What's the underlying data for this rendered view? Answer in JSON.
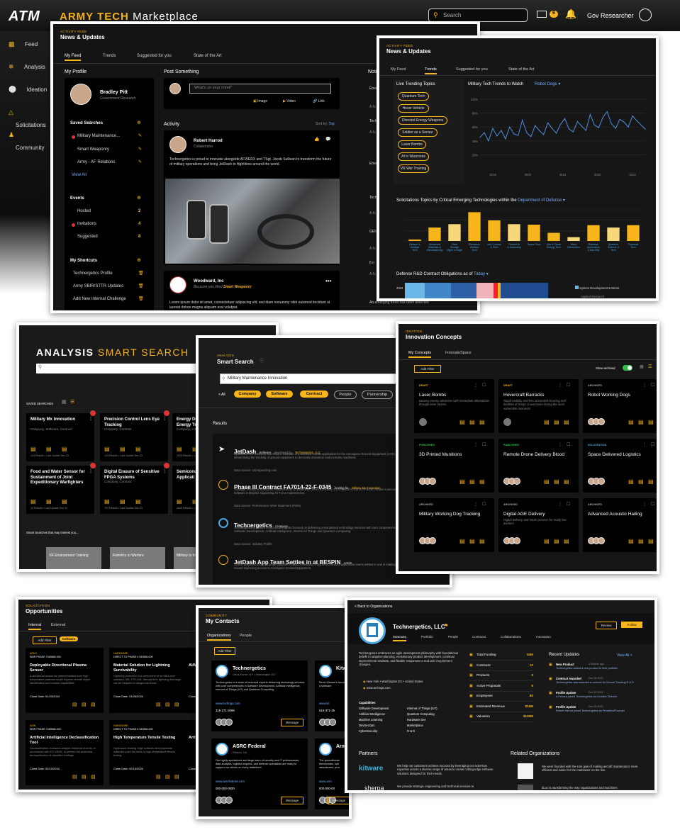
{
  "app": {
    "logo": "ATM",
    "brand_a": "ARMY TECH",
    "brand_b": "Marketplace",
    "search_placeholder": "Search",
    "mail_count": "6",
    "user": "Gov Researcher"
  },
  "sidebar": [
    {
      "label": "Feed"
    },
    {
      "label": "Analysis"
    },
    {
      "label": "Ideation"
    },
    {
      "label": "Solicitations"
    },
    {
      "label": "Community"
    }
  ],
  "feed": {
    "kicker": "ACTIVITY FEED",
    "title": "News & Updates",
    "tabs": [
      "My Feed",
      "Trends",
      "Suggested for you",
      "State of the Art"
    ],
    "profile": {
      "section": "My Profile",
      "name": "Bradley Pitt",
      "org": "Government Research"
    },
    "saved": {
      "title": "Saved Searches",
      "items": [
        "Military Maintenance...",
        "Smart Weaponry",
        "Army - AF Relations"
      ],
      "view_all": "View All"
    },
    "events": {
      "title": "Events",
      "items": [
        {
          "label": "Hosted",
          "count": "2"
        },
        {
          "label": "Invitations",
          "count": "4"
        },
        {
          "label": "Suggested",
          "count": "8"
        }
      ]
    },
    "shortcuts": {
      "title": "My Shortcuts",
      "items": [
        "Technergetics Profile",
        "Army SBIR/STTR Updates",
        "Add New Internal Challenge"
      ]
    },
    "post": {
      "title": "Post Something",
      "placeholder": "What's on your mind?",
      "image": "Image",
      "video": "Video",
      "link": "Link"
    },
    "activity": {
      "title": "Activity",
      "sort_label": "Sort by:",
      "sort_value": "Top",
      "post1": {
        "name": "Robert Harrod",
        "role": "Collaborator",
        "text": "Technergetics is proud to innovate alongside AFWERX and TSgt. Jacob Sullivan to transform the future of military operations and bring JetDash to flightlines around the world."
      },
      "post2": {
        "name": "Woodward, Inc",
        "because": "Because you liked",
        "liked": "Smart Weaponry",
        "text": "Lorem ipsum dolor sit amet, consectetuer adipiscing elit, sed diam nonummy nibh euismod tincidunt ut laoreet dolore magna aliquam erat volutpat."
      }
    },
    "notif": {
      "title": "Noti",
      "items": [
        "Ener",
        "A fo",
        "Tech",
        "A fo",
        "Ener",
        "Tech",
        "A fo",
        "GEN",
        "A fo",
        "6 n",
        "A fo",
        "An emerging trend has been detected"
      ]
    }
  },
  "trends": {
    "kicker": "ACTIVITY FEED",
    "title": "News & Updates",
    "tabs": [
      "My Feed",
      "Trends",
      "Suggested for you",
      "State of the Art"
    ],
    "live_title": "Live Trending Topics",
    "topics": [
      "Quantum Tech",
      "Hover Vehicle",
      "Directed Energy Weapons",
      "Soldier as a Sensor",
      "Laser Bombs",
      "AI in Warzones",
      "VR War Training"
    ],
    "line": {
      "title": "Military Tech Trends to Watch",
      "select": "Robot Dogs",
      "yticks": [
        "100%",
        "80%",
        "60%",
        "40%",
        "20%"
      ],
      "xticks": [
        "2019",
        "2020",
        "2021",
        "2022",
        "2023"
      ]
    },
    "bars_title": "Solicitations Topics by Critical Emerging Technologies within the",
    "bars_select": "Department of Defense",
    "oblig_title": "Defense R&D Contract Obligations as of",
    "oblig_select": "Today",
    "oblig_legend": [
      "System Development & Demo",
      "Applied Research"
    ],
    "oblig_year": "2024"
  },
  "chart_data": [
    {
      "type": "line",
      "title": "Military Tech Trends to Watch",
      "series": [
        {
          "name": "Robot Dogs",
          "values": [
            45,
            52,
            40,
            58,
            47,
            55,
            43,
            60,
            50,
            48,
            70,
            52,
            46,
            62,
            55,
            49,
            66,
            58,
            51,
            64,
            72,
            57,
            53,
            68,
            61,
            55,
            78,
            63,
            59,
            74,
            82,
            65,
            58,
            71,
            67,
            60,
            76,
            69,
            63,
            57
          ]
        }
      ],
      "xticks": [
        "2019",
        "2020",
        "2021",
        "2022",
        "2023"
      ],
      "ylim": [
        0,
        100
      ]
    },
    {
      "type": "bar",
      "title": "Solicitations Topics by Critical Emerging Technologies within the Department of Defense",
      "categories": [
        "Biotech & Medical Tech",
        "Advanced Materials & Manufacturing",
        "Data Storage Mgmt & Edge Computing",
        "Electronic Warfare Tech",
        "Info Comms & Tech",
        "Trusted AI & Autonomy",
        "Space Tech",
        "Adv & Clean Energy Tech",
        "Micro Electronics",
        "Robotics, Automation & Adv Mfg",
        "Quantum Science & Tech",
        "Financial Tech"
      ],
      "values": [
        3,
        28,
        35,
        60,
        43,
        35,
        34,
        17,
        8,
        33,
        28,
        33
      ],
      "highlight": [
        false,
        false,
        true,
        false,
        false,
        true,
        false,
        false,
        true,
        false,
        true,
        false
      ]
    }
  ],
  "analysis": {
    "title_a": "ANALYSIS",
    "title_b": "SMART SEARCH",
    "saved_label": "SAVED SEARCHES",
    "cards": [
      {
        "title": "Military Mx Innovation",
        "sub": "Company, Software, Contract",
        "foot": "124 Results • Last Update Dec 23"
      },
      {
        "title": "Precision Control Lens Eye Tracking",
        "sub": "Company, Contract",
        "foot": "133 Results • Last Update Dec 23"
      },
      {
        "title": "Energy Dens Reduction Energy Tec",
        "sub": "Company, Con",
        "foot": "1825 Results • Last Update"
      },
      {
        "title": "Food and Water Sensor for Sustainment of Joint Expeditionary Warfighters",
        "sub": "",
        "foot": "12 Results • Last Update Dec 23"
      },
      {
        "title": "Digital Erasure of Sensitive FPGA Systems",
        "sub": "Company, Contract",
        "foot": "793 Results • Last Update Dec 23"
      },
      {
        "title": "Semicond Arrays for Applicati Conventio",
        "sub": "",
        "foot": "1825 Results • Last Update"
      }
    ],
    "interest_label": "Smart Searches that may interest you...",
    "interest": [
      "VR Environment Training",
      "Robotics in Warfare",
      "Military In Investme"
    ]
  },
  "smart": {
    "kicker": "ANALYSIS",
    "title": "Smart Search",
    "query": "Military Maintenance Innovation",
    "all": "< All",
    "filters": [
      "Company",
      "Software",
      "Contract"
    ],
    "filters2": [
      "People",
      "Partnership"
    ],
    "results_label": "Results",
    "results": [
      {
        "title": "JetDash",
        "tag": "Software",
        "dev": "developed by",
        "dev_link": "Technergetics, LLC",
        "text": "Optimized AOC Delivery and Return. JetDash is a web and mobile application for the Aerospace Ground Equipment (AGE) community, streamlining the tracking of ground equipment to decrease downtime and increase readiness.",
        "src": "Data Source: USAspending.com"
      },
      {
        "title": "Phase III Contract FA7014-22-F-0345",
        "tag": "funding for",
        "dev": "",
        "dev_link": "Military Mx Innovation",
        "text": "Strategic Pursuit of Enterprise Advancement & Readiness (SPEAR) Phase III Contract FA7014-22-F-0345 creates a secure, scalable software enterprise supporting Air Force maintenance.",
        "src": "Data Source: Performance Work Statement (PWS)"
      },
      {
        "title": "Technergetics",
        "tag": "Company",
        "dev": "",
        "dev_link": "",
        "text": "Technergetics is a team of technical experts focused on delivering unsurpassed technology services with core competencies in Software Development, Artificial Intelligence, Internet of Things and Quantum Computing.",
        "src": "Data Source: Industry Profile"
      },
      {
        "title": "JetDash App Team Settles in at BESPIN",
        "tag": "Article",
        "dev": "",
        "dev_link": "",
        "text": "One of Business and Enterprise Systems Product Innovation's (BESPIN) newest application teams settled in and is making progress toward improving access to Aerospace Ground Equipment.",
        "src": ""
      }
    ]
  },
  "ideation": {
    "kicker": "IDEATION",
    "title": "Innovation Concepts",
    "tabs": [
      "My Concepts",
      "InnovateSpace"
    ],
    "add_filter": "Add Filter",
    "show_archived": "Show archived",
    "cards": [
      {
        "status": "DRAFT",
        "title": "Laser Bombs",
        "text": "Destroy enemy advances with immediate detonations through laser beams."
      },
      {
        "status": "DRAFT",
        "title": "Hovercraft Barracks",
        "text": "Rapid mobility and less accessible housing and facilities of troops in warzones during the most vulnerable moments."
      },
      {
        "status": "ARCHIVED",
        "title": "Robot Working Dogs",
        "text": ""
      },
      {
        "status": "PUBLISHED",
        "title": "3D Printed Munitions",
        "text": ""
      },
      {
        "status": "PUBLISHED",
        "title": "Remote Drone Delivery Blood",
        "text": ""
      },
      {
        "status": "SOLICITATION",
        "title": "Space Delivered Logistics",
        "text": ""
      },
      {
        "status": "ARCHIVED",
        "title": "Military Working Dog Tracking",
        "text": ""
      },
      {
        "status": "ARCHIVED",
        "title": "Digital AGE Delivery",
        "text": "Digital delivery and return process for ready line workers."
      },
      {
        "status": "ARCHIVED",
        "title": "Advanced Acoustic Hailing",
        "text": ""
      }
    ]
  },
  "opps": {
    "kicker": "SOLICITATION",
    "title": "Opportunities",
    "tabs": [
      "Internal",
      "External"
    ],
    "add_filter": "Add Filter",
    "chip": "Software",
    "cards": [
      {
        "phase": "ARMY",
        "code": "SBIR PHASE I 543565-003",
        "title": "Deployable Directional Plasma Sensor",
        "text": "A directional sensor for plasma emitted from high temperature plasmas would improve remote object identification and location capabilities.",
        "close": "Close Date: 01/23/2024"
      },
      {
        "phase": "HARDWARE",
        "code": "DIRECT TO PHASE II 543556-009",
        "title": "Material Solution for Lightning Survivability",
        "text": "Lightning protection is a component of an MRA core standard, MIL-STD-464. Atmospheric lightning discharge can be frequent to dangerous levels.",
        "close": "Close Date: 01/28/2024"
      },
      {
        "phase": "",
        "code": "",
        "title": "AI/ML Reduc",
        "text": "",
        "close": "Close D"
      },
      {
        "phase": "AI/ML",
        "code": "SBIR PHASE I 543565-003",
        "title": "Artificial Intelligence Declassification Tool",
        "text": "Declassification reviewers analyze historical records, in accordance with EO 13526, to prevent the automatic declassification of classified holdings.",
        "close": "Close Date: 02/10/2024"
      },
      {
        "phase": "HARDWARE",
        "code": "DIRECT TO PHASE II 543556-009",
        "title": "High Temperature Tensile Testing",
        "text": "Hypersonic leading edge surfaces and propulsion materials push the limits of high-temperature tensile testing.",
        "close": "Close Date: 02/15/2024"
      },
      {
        "phase": "",
        "code": "",
        "title": "Artifi Lethal Non-K Enha",
        "text": "",
        "close": "Close D"
      }
    ]
  },
  "contacts": {
    "kicker": "COMMUNITY",
    "title": "My Contacts",
    "tabs": [
      "Organizations",
      "People"
    ],
    "add_filter": "Add Filter",
    "cards": [
      {
        "name": "Technergetics",
        "loc": "Utica-Rome, NY • Washington DC",
        "text": "Technergetics is a team of technical experts delivering technology services with core competencies in Software Development, Artificial Intelligence, Internet of Things (IoT) and Quantum Computing.",
        "url": "www.techngs.com",
        "phone": "315-271-2096",
        "msg": "Message"
      },
      {
        "name": "Kitw",
        "loc": "",
        "text": "Since Kitware's found been a software",
        "url": "www.kit",
        "phone": "518-371-35",
        "msg": ""
      },
      {
        "name": "ASRC Federal",
        "loc": "Reston, VA",
        "text": "Our highly specialized and large team of security and IT professionals, data analysts, logistics experts, and defense specialists are ready to support our clients on every battlefront.",
        "url": "www.asrcfederal.com",
        "phone": "000-000-0000",
        "msg": "Message"
      },
      {
        "name": "Arm",
        "loc": "",
        "text": "The groundbreak directorates, sub laboratories, prov",
        "url": "www.arm",
        "phone": "000-000-00",
        "msg": "Message"
      }
    ]
  },
  "org": {
    "back": "< Back to Organizations",
    "name": "Technergetics, LLC",
    "review": "Review",
    "follow": "Follow",
    "tabs": [
      "Summary",
      "Portfolio",
      "People",
      "Contracts",
      "Collaborations",
      "Innovation"
    ],
    "about": "Technergetics embraces an agile development philosophy with foundational beliefs in adaptive planning, evolutionary product development, continual improvement mindsets, and flexible responses to end user requirement changes.",
    "loc": "New York • Washington DC • United States",
    "url": "www.techngs.com",
    "cap_title": "Capabilities",
    "caps": [
      "Software Development",
      "Artificial Intelligence",
      "Machine Learning",
      "DevSecOps",
      "CyberSecurity",
      "Internet of Things (IoT)",
      "Quantum Computing",
      "Hardware Dev",
      "Marketplace",
      "R & D"
    ],
    "stats": [
      {
        "label": "Total Funding",
        "val": "$4M"
      },
      {
        "label": "Contracts",
        "val": "12"
      },
      {
        "label": "Products",
        "val": "3"
      },
      {
        "label": "Active Proposals",
        "val": "6"
      },
      {
        "label": "Employees",
        "val": "80"
      },
      {
        "label": "Estimated Revenue",
        "val": "$10M"
      },
      {
        "label": "Valuation",
        "val": "$100M"
      }
    ],
    "updates_title": "Recent Updates",
    "view_all": "View All >",
    "updates": [
      {
        "t": "New Product",
        "w": "4 Months ago",
        "d": "Technergetics added a new product to their portfolio"
      },
      {
        "t": "Contract Awarded",
        "w": "Dec 18 2023",
        "d": "Technergetics was awarded a contract for Sensor Tracking R & D"
      },
      {
        "t": "Profile Update",
        "w": "Dec 20 2023",
        "d": "A Ferrara joined Technergetics as Creative Director"
      },
      {
        "t": "Profile Update",
        "w": "Dec 15 2023",
        "d": "Robert Harrod joined Technergetics as President/Founder"
      }
    ],
    "partners_title": "Partners",
    "partners": [
      {
        "n": "kitware",
        "d": "We help our customers achieve success by leveraging our extensive expertise across a diverse range of areas to create cutting-edge software solutions designed for their needs."
      },
      {
        "n": "sherpa",
        "d": "We provide strategic engineering and technical services to"
      }
    ],
    "related_title": "Related Organizations",
    "related": [
      "We were founded with the sole goal of making aircraft maintenance more efficient and easier for the maintainer on the line.",
      "dLoc is transforming the way organizations and machines"
    ]
  }
}
